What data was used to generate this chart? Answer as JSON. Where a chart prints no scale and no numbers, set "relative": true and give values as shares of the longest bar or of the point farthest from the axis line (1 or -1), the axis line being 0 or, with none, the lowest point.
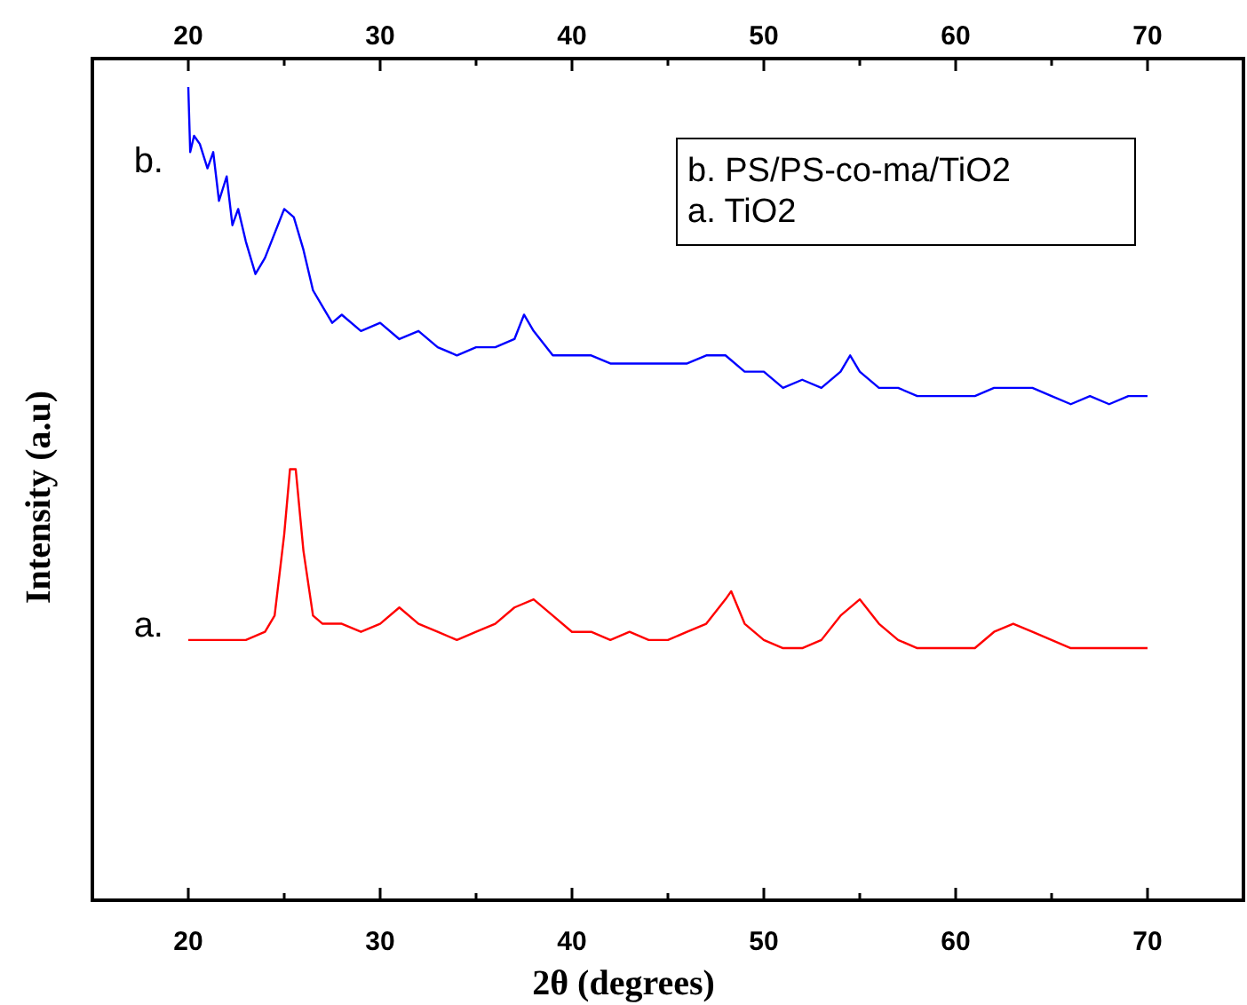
{
  "chart_data": {
    "type": "line",
    "relative": true,
    "xlabel": "2θ (degrees)",
    "ylabel": "Intensity (a.u)",
    "xlim": [
      15,
      75
    ],
    "xticks": [
      {
        "value": 15,
        "label": null
      },
      20,
      {
        "value": 25,
        "label": null
      },
      30,
      {
        "value": 35,
        "label": null
      },
      40,
      {
        "value": 45,
        "label": null
      },
      50,
      {
        "value": 55,
        "label": null
      },
      60,
      {
        "value": 65,
        "label": null
      },
      70,
      {
        "value": 75,
        "label": null
      }
    ],
    "x2lim": [
      15,
      75
    ],
    "x2ticks": [
      {
        "value": 15,
        "label": null
      },
      20,
      {
        "value": 25,
        "label": null
      },
      30,
      {
        "value": 35,
        "label": null
      },
      40,
      {
        "value": 45,
        "label": null
      },
      50,
      {
        "value": 55,
        "label": null
      },
      60,
      {
        "value": 65,
        "label": null
      },
      70,
      {
        "value": 75,
        "label": null
      }
    ],
    "grid": false,
    "marker": "none",
    "line_style": "solid",
    "annotations": [
      "b. PS/PS-co-ma/TiO2",
      "a. TiO2"
    ],
    "series": [
      {
        "name": "b.",
        "color": "#0000ff",
        "x": [
          20,
          20.1,
          20.3,
          20.6,
          21,
          21.3,
          21.6,
          22,
          22.3,
          22.6,
          23,
          23.5,
          24,
          24.5,
          25,
          25.5,
          26,
          26.5,
          27,
          27.5,
          28,
          29,
          30,
          31,
          32,
          33,
          34,
          35,
          36,
          37,
          37.5,
          38,
          39,
          40,
          41,
          42,
          43,
          44,
          45,
          46,
          47,
          48,
          49,
          50,
          51,
          52,
          53,
          54,
          54.5,
          55,
          56,
          57,
          58,
          59,
          60,
          61,
          62,
          63,
          64,
          65,
          66,
          67,
          68,
          69,
          70
        ],
        "values": [
          1.0,
          0.92,
          0.94,
          0.93,
          0.9,
          0.92,
          0.86,
          0.89,
          0.83,
          0.85,
          0.81,
          0.77,
          0.79,
          0.82,
          0.85,
          0.84,
          0.8,
          0.75,
          0.73,
          0.71,
          0.72,
          0.7,
          0.71,
          0.69,
          0.7,
          0.68,
          0.67,
          0.68,
          0.68,
          0.69,
          0.72,
          0.7,
          0.67,
          0.67,
          0.67,
          0.66,
          0.66,
          0.66,
          0.66,
          0.66,
          0.67,
          0.67,
          0.65,
          0.65,
          0.63,
          0.64,
          0.63,
          0.65,
          0.67,
          0.65,
          0.63,
          0.63,
          0.62,
          0.62,
          0.62,
          0.62,
          0.63,
          0.63,
          0.63,
          0.62,
          0.61,
          0.62,
          0.61,
          0.62,
          0.62
        ]
      },
      {
        "name": "a.",
        "color": "#ff0000",
        "x": [
          20,
          21,
          22,
          23,
          24,
          24.5,
          25,
          25.3,
          25.6,
          26,
          26.5,
          27,
          28,
          29,
          30,
          31,
          32,
          33,
          34,
          35,
          36,
          37,
          38,
          39,
          40,
          41,
          42,
          43,
          44,
          45,
          46,
          47,
          48,
          48.3,
          49,
          50,
          51,
          52,
          53,
          54,
          55,
          56,
          57,
          58,
          59,
          60,
          61,
          62,
          63,
          64,
          65,
          66,
          67,
          68,
          69,
          70
        ],
        "values": [
          0.32,
          0.32,
          0.32,
          0.32,
          0.33,
          0.35,
          0.45,
          0.53,
          0.53,
          0.43,
          0.35,
          0.34,
          0.34,
          0.33,
          0.34,
          0.36,
          0.34,
          0.33,
          0.32,
          0.33,
          0.34,
          0.36,
          0.37,
          0.35,
          0.33,
          0.33,
          0.32,
          0.33,
          0.32,
          0.32,
          0.33,
          0.34,
          0.37,
          0.38,
          0.34,
          0.32,
          0.31,
          0.31,
          0.32,
          0.35,
          0.37,
          0.34,
          0.32,
          0.31,
          0.31,
          0.31,
          0.31,
          0.33,
          0.34,
          0.33,
          0.32,
          0.31,
          0.31,
          0.31,
          0.31,
          0.31
        ]
      }
    ]
  }
}
